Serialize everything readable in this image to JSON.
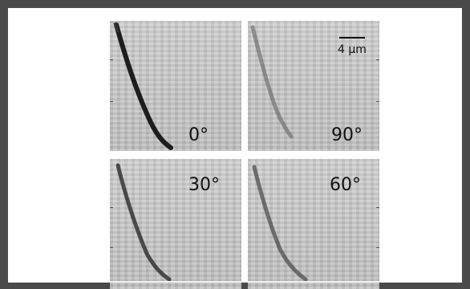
{
  "panels": [
    {
      "id": "top-left",
      "angle_label": "0°",
      "intensity": 1.0
    },
    {
      "id": "top-right",
      "angle_label": "90°",
      "intensity": 0.3
    },
    {
      "id": "bottom-left",
      "angle_label": "30°",
      "intensity": 0.6
    },
    {
      "id": "bottom-right",
      "angle_label": "60°",
      "intensity": 0.45
    }
  ],
  "scale_bar": {
    "label": "4 µm"
  },
  "colors": {
    "background": "#4a4a4a",
    "panel": "#c9c9c9",
    "streak": "#141414"
  }
}
